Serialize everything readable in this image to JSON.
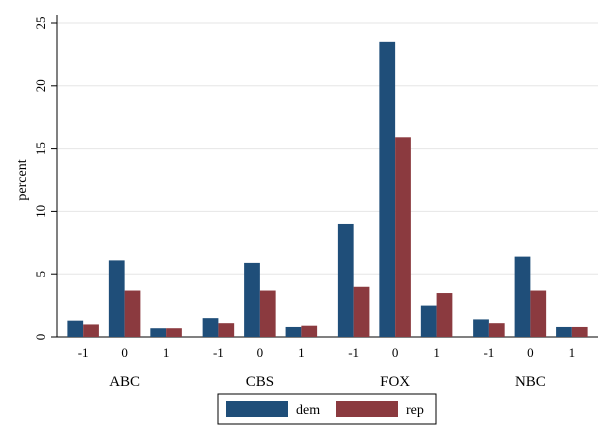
{
  "chart_data": {
    "type": "bar",
    "ylabel": "percent",
    "ylim": [
      0,
      25
    ],
    "yticks": [
      0,
      5,
      10,
      15,
      20,
      25
    ],
    "grid": true,
    "groups": [
      "ABC",
      "CBS",
      "FOX",
      "NBC"
    ],
    "categories": [
      "-1",
      "0",
      "1"
    ],
    "series": [
      {
        "name": "dem",
        "color": "#1f4e79",
        "values": [
          [
            1.3,
            6.1,
            0.7
          ],
          [
            1.5,
            5.9,
            0.8
          ],
          [
            9.0,
            23.5,
            2.5
          ],
          [
            1.4,
            6.4,
            0.8
          ]
        ]
      },
      {
        "name": "rep",
        "color": "#8b3a3f",
        "values": [
          [
            1.0,
            3.7,
            0.7
          ],
          [
            1.1,
            3.7,
            0.9
          ],
          [
            4.0,
            15.9,
            3.5
          ],
          [
            1.1,
            3.7,
            0.8
          ]
        ]
      }
    ],
    "legend_position": "bottom-center"
  }
}
